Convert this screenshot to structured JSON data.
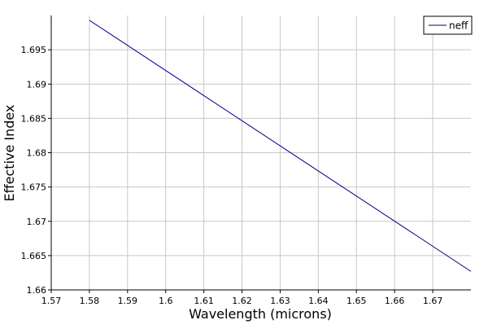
{
  "chart_data": {
    "type": "line",
    "title": "",
    "xlabel": "Wavelength (microns)",
    "ylabel": "Effective Index",
    "xlim": [
      1.57,
      1.68
    ],
    "ylim": [
      1.66,
      1.7
    ],
    "xticks": [
      1.57,
      1.58,
      1.59,
      1.6,
      1.61,
      1.62,
      1.63,
      1.64,
      1.65,
      1.66,
      1.67
    ],
    "xtick_labels": [
      "1.57",
      "1.58",
      "1.59",
      "1.6",
      "1.61",
      "1.62",
      "1.63",
      "1.64",
      "1.65",
      "1.66",
      "1.67"
    ],
    "yticks": [
      1.66,
      1.665,
      1.67,
      1.675,
      1.68,
      1.685,
      1.69,
      1.695
    ],
    "ytick_labels": [
      "1.66",
      "1.665",
      "1.67",
      "1.675",
      "1.68",
      "1.685",
      "1.69",
      "1.695"
    ],
    "grid": true,
    "legend_position": "top-right",
    "series": [
      {
        "name": "neff",
        "color": "#00008b",
        "x": [
          1.58,
          1.68
        ],
        "y": [
          1.6993,
          1.6627
        ]
      }
    ]
  }
}
